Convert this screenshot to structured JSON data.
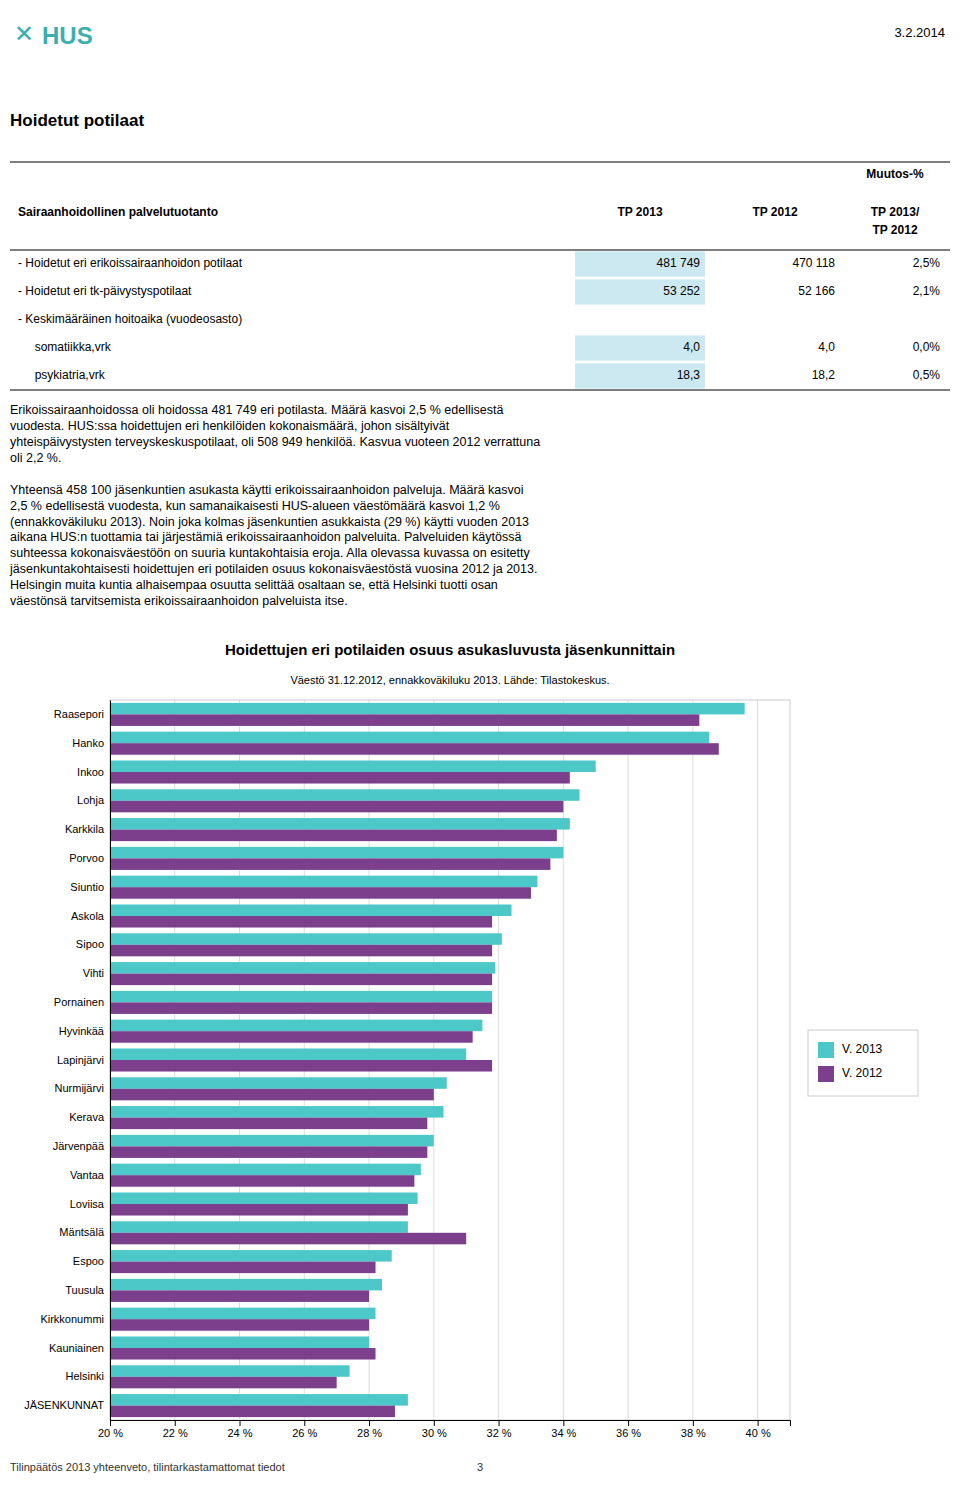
{
  "logo_symbol": "✕",
  "logo": "HUS",
  "date": "3.2.2014",
  "page_title": "Hoidetut potilaat",
  "table": {
    "header": {
      "label": "Sairaanhoidollinen palvelutuotanto",
      "tp2013": "TP 2013",
      "tp2012": "TP 2012",
      "muutos": [
        "Muutos-%",
        "TP 2013/",
        "TP 2012"
      ]
    },
    "rows": [
      {
        "label": "- Hoidetut eri erikoissairaanhoidon potilaat",
        "tp2013": "481 749",
        "tp2012": "470 118",
        "muutos": "2,5%",
        "highlight": true
      },
      {
        "label": "- Hoidetut eri tk-päivystyspotilaat",
        "tp2013": "53 252",
        "tp2012": "52 166",
        "muutos": "2,1%",
        "highlight": true
      },
      {
        "label": "- Keskimääräinen hoitoaika (vuodeosasto)",
        "tp2013": null,
        "tp2012": null,
        "muutos": null,
        "highlight": false
      },
      {
        "label": "     somatiikka,vrk",
        "tp2013": "4,0",
        "tp2012": "4,0",
        "muutos": "0,0%",
        "highlight": true
      },
      {
        "label": "     psykiatria,vrk",
        "tp2013": "18,3",
        "tp2012": "18,2",
        "muutos": "0,5%",
        "highlight": true
      }
    ],
    "highlight_color": "#cce8f0"
  },
  "body_text": [
    "Erikoissairaanhoidossa oli hoidossa 481 749 eri potilasta. Määrä kasvoi 2,5 % edellisestä",
    "vuodesta. HUS:ssa hoidettujen eri henkilöiden kokonaismäärä, johon sisältyivät",
    "yhteispäivystysten terveyskeskuspotilaat, oli 508 949 henkilöä. Kasvua vuoteen 2012 verrattuna",
    "oli 2,2 %.",
    null,
    "Yhteensä 458 100 jäsenkuntien asukasta käytti erikoissairaanhoidon palveluja. Määrä kasvoi",
    "2,5 % edellisestä vuodesta, kun samanaikaisesti HUS-alueen väestömäärä kasvoi 1,2 %",
    "(ennakkoväkiluku 2013). Noin joka kolmas jäsenkuntien asukkaista (29 %) käytti vuoden 2013",
    "aikana HUS:n tuottamia tai järjestämiä erikoissairaanhoidon palveluita. Palveluiden käytössä",
    "suhteessa kokonaisväestöön on suuria kuntakohtaisia eroja. Alla olevassa kuvassa on esitetty",
    "jäsenkuntakohtaisesti hoidettujen eri potilaiden osuus kokonaisväestöstä vuosina 2012 ja 2013.",
    "Helsingin muita kuntia alhaisempaa osuutta selittää osaltaan se, että Helsinki tuotti osan",
    "väestönsä tarvitsemista erikoissairaanhoidon palveluista itse."
  ],
  "chart_data": {
    "type": "bar",
    "orientation": "horizontal",
    "title": "Hoidettujen eri potilaiden osuus asukasluvusta jäsenkunnittain",
    "subtitle": "Väestö 31.12.2012, ennakkoväkiluku 2013. Lähde: Tilastokeskus.",
    "categories": [
      "Raasepori",
      "Hanko",
      "Inkoo",
      "Lohja",
      "Karkkila",
      "Porvoo",
      "Siuntio",
      "Askola",
      "Sipoo",
      "Vihti",
      "Pornainen",
      "Hyvinkää",
      "Lapinjärvi",
      "Nurmijärvi",
      "Kerava",
      "Järvenpää",
      "Vantaa",
      "Loviisa",
      "Mäntsälä",
      "Espoo",
      "Tuusula",
      "Kirkkonummi",
      "Kauniainen",
      "Helsinki",
      "JÄSENKUNNAT"
    ],
    "series": [
      {
        "name": "V. 2013",
        "color": "#4dc8c8",
        "values": [
          39.6,
          38.5,
          35.0,
          34.5,
          34.2,
          34.0,
          33.2,
          32.4,
          32.1,
          31.9,
          31.8,
          31.5,
          31.0,
          30.4,
          30.3,
          30.0,
          29.6,
          29.5,
          29.2,
          28.7,
          28.4,
          28.2,
          28.0,
          27.4,
          29.2
        ]
      },
      {
        "name": "V. 2012",
        "color": "#7b3f8c",
        "values": [
          38.2,
          38.8,
          34.2,
          34.0,
          33.8,
          33.6,
          33.0,
          31.8,
          31.8,
          31.8,
          31.8,
          31.2,
          31.8,
          30.0,
          29.8,
          29.8,
          29.4,
          29.2,
          31.0,
          28.2,
          28.0,
          28.0,
          28.2,
          27.0,
          28.8
        ]
      }
    ],
    "xlim": [
      20,
      41
    ],
    "xticks": [
      {
        "value": 20,
        "label": "20 %"
      },
      {
        "value": 22,
        "label": "22 %"
      },
      {
        "value": 24,
        "label": "24 %"
      },
      {
        "value": 26,
        "label": "26 %"
      },
      {
        "value": 28,
        "label": "28 %"
      },
      {
        "value": 30,
        "label": "30 %"
      },
      {
        "value": 32,
        "label": "32 %"
      },
      {
        "value": 34,
        "label": "34 %"
      },
      {
        "value": 36,
        "label": "36 %"
      },
      {
        "value": 38,
        "label": "38 %"
      },
      {
        "value": 40,
        "label": "40 %"
      }
    ],
    "grid": true,
    "legend": "right"
  },
  "footer": "Tilinpäätös 2013 yhteenveto, tilintarkastamattomat tiedot",
  "footer_page": "3"
}
